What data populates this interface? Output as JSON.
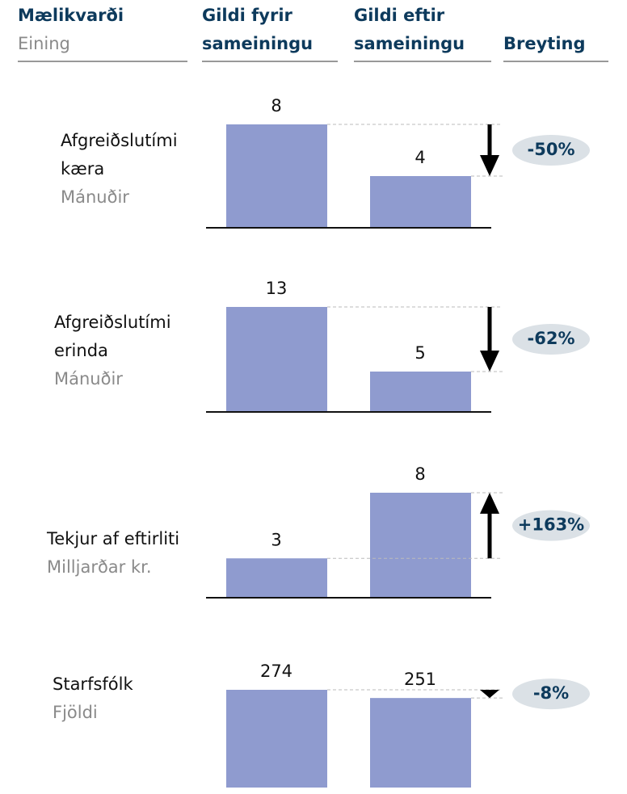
{
  "header": {
    "metric": "Mælikvarði",
    "unit": "Eining",
    "before": [
      "Gildi fyrir",
      "sameiningu"
    ],
    "after": [
      "Gildi eftir",
      "sameiningu"
    ],
    "change": "Breyting"
  },
  "rows": [
    {
      "label": [
        "Afgreiðslutími",
        "kæra"
      ],
      "unit": "Mánuðir",
      "before": 8,
      "after": 4,
      "change": "-50%"
    },
    {
      "label": [
        "Afgreiðslutími",
        "erinda"
      ],
      "unit": "Mánuðir",
      "before": 13,
      "after": 5,
      "change": "-62%"
    },
    {
      "label": [
        "Tekjur af eftirliti"
      ],
      "unit": "Milljarðar kr.",
      "before": 3,
      "after": 8,
      "change": "+163%"
    },
    {
      "label": [
        "Starfsfólk"
      ],
      "unit": "Fjöldi",
      "before": 274,
      "after": 251,
      "change": "-8%"
    }
  ]
}
